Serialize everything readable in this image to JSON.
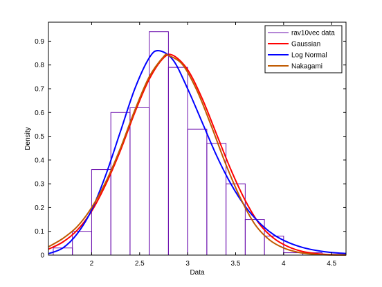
{
  "chart_data": {
    "type": "histogram-with-fits",
    "title": "",
    "xlabel": "Data",
    "ylabel": "Density",
    "xlim": [
      1.55,
      4.65
    ],
    "ylim": [
      0,
      0.98
    ],
    "xticks": [
      2,
      2.5,
      3,
      3.5,
      4,
      4.5
    ],
    "xtick_labels": [
      "2",
      "2.5",
      "3",
      "3.5",
      "4",
      "4.5"
    ],
    "yticks": [
      0,
      0.1,
      0.2,
      0.3,
      0.4,
      0.5,
      0.6,
      0.7,
      0.8,
      0.9
    ],
    "ytick_labels": [
      "0",
      "0.1",
      "0.2",
      "0.3",
      "0.4",
      "0.5",
      "0.6",
      "0.7",
      "0.8",
      "0.9"
    ],
    "legend_position": "top-right",
    "histogram": {
      "name": "rav10vec data",
      "color": "#6a0dad",
      "bin_edges": [
        1.6,
        1.8,
        2.0,
        2.2,
        2.4,
        2.6,
        2.8,
        3.0,
        3.2,
        3.4,
        3.6,
        3.8,
        4.0,
        4.2,
        4.4
      ],
      "values": [
        0.03,
        0.1,
        0.36,
        0.6,
        0.62,
        0.94,
        0.79,
        0.53,
        0.47,
        0.3,
        0.15,
        0.08,
        0.01,
        0.01
      ]
    },
    "series": [
      {
        "name": "Gaussian",
        "color": "#ff0000",
        "x": [
          1.55,
          1.7,
          1.85,
          2.0,
          2.15,
          2.3,
          2.45,
          2.6,
          2.75,
          2.85,
          3.0,
          3.15,
          3.3,
          3.45,
          3.6,
          3.75,
          3.9,
          4.05,
          4.2,
          4.35,
          4.5,
          4.65
        ],
        "y": [
          0.025,
          0.055,
          0.105,
          0.185,
          0.3,
          0.44,
          0.6,
          0.74,
          0.83,
          0.84,
          0.78,
          0.66,
          0.51,
          0.36,
          0.23,
          0.13,
          0.07,
          0.035,
          0.015,
          0.006,
          0.002,
          0.001
        ]
      },
      {
        "name": "Log Normal",
        "color": "#0000ff",
        "x": [
          1.55,
          1.7,
          1.85,
          2.0,
          2.15,
          2.3,
          2.45,
          2.6,
          2.7,
          2.85,
          3.0,
          3.15,
          3.3,
          3.45,
          3.6,
          3.75,
          3.9,
          4.05,
          4.2,
          4.35,
          4.5,
          4.65
        ],
        "y": [
          0.006,
          0.03,
          0.09,
          0.19,
          0.34,
          0.52,
          0.7,
          0.83,
          0.86,
          0.82,
          0.7,
          0.56,
          0.42,
          0.3,
          0.205,
          0.135,
          0.085,
          0.053,
          0.032,
          0.019,
          0.011,
          0.007
        ]
      },
      {
        "name": "Nakagami",
        "color": "#c05a00",
        "x": [
          1.55,
          1.7,
          1.85,
          2.0,
          2.15,
          2.3,
          2.45,
          2.6,
          2.75,
          2.8,
          2.95,
          3.1,
          3.25,
          3.4,
          3.55,
          3.7,
          3.85,
          4.0,
          4.15,
          4.3,
          4.45,
          4.65
        ],
        "y": [
          0.035,
          0.07,
          0.12,
          0.2,
          0.31,
          0.45,
          0.61,
          0.75,
          0.835,
          0.84,
          0.8,
          0.69,
          0.54,
          0.38,
          0.24,
          0.13,
          0.065,
          0.03,
          0.012,
          0.004,
          0.001,
          0.0002
        ]
      }
    ]
  }
}
